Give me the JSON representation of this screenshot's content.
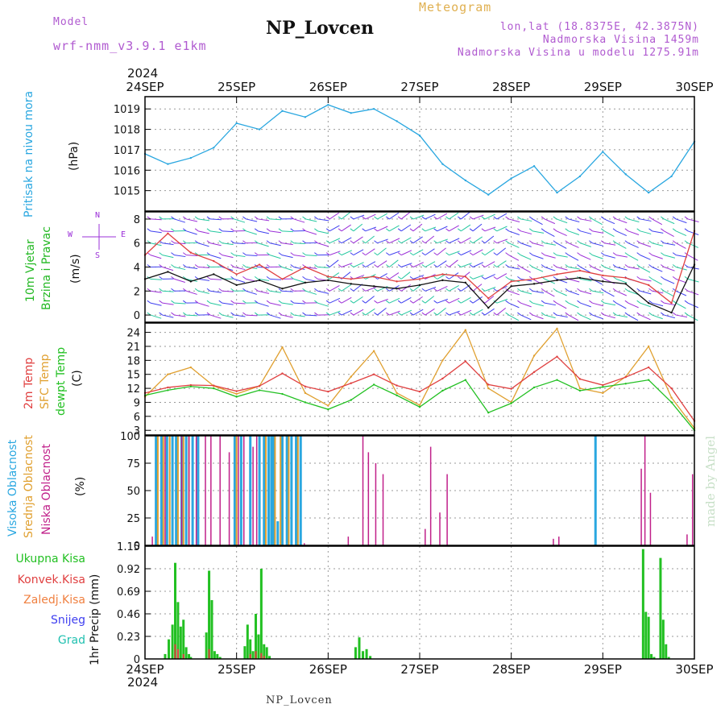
{
  "header": {
    "model_label": "Model",
    "model_name": "wrf-nmm_v3.9.1 e1km",
    "title": "NP_Lovcen",
    "meteogram_label": "Meteogram",
    "coords": "lon,lat (18.8375E, 42.3875N)",
    "elevation": "Nadmorska Visina 1459m",
    "elevation_model": "Nadmorska Visina u modelu 1275.91m",
    "year_top": "2024",
    "year_bottom": "2024",
    "footer": "NP_Lovcen",
    "credit": "made by Angel"
  },
  "colors": {
    "pressure": "#2aa7e0",
    "wind_label": "#22b822",
    "wind_arrows_a": "#25c8a0",
    "wind_arrows_b": "#3f3ff0",
    "wind_arrows_c": "#9b30d8",
    "gust": "#e04040",
    "temp2m": "#e04040",
    "sfc": "#e0a030",
    "dew": "#22c022",
    "high_cloud": "#2aa7e0",
    "mid_cloud": "#e0a030",
    "low_cloud": "#c0208a",
    "total_precip": "#22c022",
    "conv_precip": "#e04040",
    "frozen": "#f08040",
    "snow": "#3f3ff0",
    "hail": "#20c0b0"
  },
  "x_axis": {
    "labels": [
      "24SEP",
      "25SEP",
      "26SEP",
      "27SEP",
      "28SEP",
      "29SEP",
      "30SEP"
    ]
  },
  "panels": {
    "pressure": {
      "label": "Pritisak na nivou mora",
      "unit": "(hPa)",
      "ticks": [
        "1015",
        "1016",
        "1017",
        "1018",
        "1019"
      ]
    },
    "wind": {
      "label1": "10m Vjetar",
      "label2": "Brzina i Pravac",
      "unit": "(m/s)",
      "ticks": [
        "0",
        "2",
        "4",
        "6",
        "8"
      ],
      "compass_w": "W",
      "compass_e": "E",
      "compass_n": "N",
      "compass_s": "S"
    },
    "temp": {
      "label1": "2m Temp",
      "label2": "SFC Temp",
      "label3": "dewpt Temp",
      "unit": "(C)",
      "ticks": [
        "3",
        "6",
        "9",
        "12",
        "15",
        "18",
        "21",
        "24"
      ]
    },
    "cloud": {
      "label1": "Visoka Oblacnost",
      "label2": "Srednja Oblacnost",
      "label3": "Niska Oblacnost",
      "unit": "(%)",
      "ticks": [
        "0",
        "25",
        "50",
        "75",
        "100"
      ]
    },
    "precip": {
      "labels": [
        "Ukupna Kisa",
        "Konvek.Kisa",
        "Zaledj.Kisa",
        "Snijeg",
        "Grad"
      ],
      "unit": "1hr Precip (mm)",
      "ticks": [
        "0",
        "0.23",
        "0.46",
        "0.69",
        "0.92",
        "1.15"
      ]
    }
  },
  "chart_data": [
    {
      "type": "line",
      "name": "pressure",
      "x_unit": "days after 24SEP 00UTC",
      "ylim": [
        1014.0,
        1019.6
      ],
      "x": [
        0,
        0.25,
        0.5,
        0.75,
        1.0,
        1.25,
        1.5,
        1.75,
        2.0,
        2.25,
        2.5,
        2.75,
        3.0,
        3.25,
        3.5,
        3.75,
        4.0,
        4.25,
        4.5,
        4.75,
        5.0,
        5.25,
        5.5,
        5.75,
        6.0
      ],
      "y": [
        1016.8,
        1016.3,
        1016.6,
        1017.1,
        1018.3,
        1018.0,
        1018.9,
        1018.6,
        1019.2,
        1018.8,
        1019.0,
        1018.4,
        1017.7,
        1016.3,
        1015.5,
        1014.8,
        1015.6,
        1016.2,
        1014.9,
        1015.7,
        1016.9,
        1015.8,
        1014.9,
        1015.7,
        1017.4
      ]
    },
    {
      "type": "line",
      "name": "wind",
      "x_unit": "days after 24SEP 00UTC",
      "ylim": [
        -0.6,
        8.6
      ],
      "series": [
        {
          "name": "10m wind speed",
          "x": [
            0,
            0.25,
            0.5,
            0.75,
            1.0,
            1.25,
            1.5,
            1.75,
            2.0,
            2.25,
            2.5,
            2.75,
            3.0,
            3.25,
            3.5,
            3.75,
            4.0,
            4.25,
            4.5,
            4.75,
            5.0,
            5.25,
            5.5,
            5.75,
            6.0
          ],
          "y": [
            3.0,
            3.6,
            2.8,
            3.4,
            2.5,
            2.9,
            2.2,
            2.7,
            2.9,
            2.6,
            2.4,
            2.2,
            2.5,
            2.9,
            2.7,
            0.6,
            2.4,
            2.6,
            2.9,
            3.1,
            2.8,
            2.6,
            1.0,
            0.2,
            4.2
          ]
        },
        {
          "name": "gust",
          "x": [
            0,
            0.25,
            0.5,
            0.75,
            1.0,
            1.25,
            1.5,
            1.75,
            2.0,
            2.25,
            2.5,
            2.75,
            3.0,
            3.25,
            3.5,
            3.75,
            4.0,
            4.25,
            4.5,
            4.75,
            5.0,
            5.25,
            5.5,
            5.75,
            6.0
          ],
          "y": [
            5.0,
            6.8,
            5.2,
            4.5,
            3.4,
            4.2,
            3.0,
            4.0,
            3.2,
            3.0,
            3.2,
            2.8,
            3.0,
            3.4,
            3.2,
            1.4,
            2.8,
            3.0,
            3.4,
            3.7,
            3.3,
            3.1,
            2.5,
            1.0,
            7.0
          ]
        }
      ]
    },
    {
      "type": "line",
      "name": "temperature",
      "x_unit": "days after 24SEP 00UTC",
      "ylim": [
        2,
        26
      ],
      "series": [
        {
          "name": "2m Temp",
          "x": [
            0,
            0.25,
            0.5,
            0.75,
            1.0,
            1.25,
            1.5,
            1.75,
            2.0,
            2.25,
            2.5,
            2.75,
            3.0,
            3.25,
            3.5,
            3.75,
            4.0,
            4.25,
            4.5,
            4.75,
            5.0,
            5.25,
            5.5,
            5.75,
            6.0
          ],
          "y": [
            11.0,
            12.2,
            12.7,
            12.6,
            11.4,
            12.5,
            15.2,
            12.4,
            11.3,
            13.1,
            15.0,
            12.6,
            11.3,
            14.1,
            17.8,
            12.8,
            11.9,
            15.5,
            18.8,
            14.0,
            12.7,
            14.4,
            16.5,
            12.0,
            5.0
          ]
        },
        {
          "name": "SFC Temp",
          "x": [
            0,
            0.25,
            0.5,
            0.75,
            1.0,
            1.25,
            1.5,
            1.75,
            2.0,
            2.25,
            2.5,
            2.75,
            3.0,
            3.25,
            3.5,
            3.75,
            4.0,
            4.25,
            4.5,
            4.75,
            5.0,
            5.25,
            5.5,
            5.75,
            6.0
          ],
          "y": [
            10.2,
            15.0,
            16.5,
            12.5,
            10.8,
            12.5,
            20.8,
            11.0,
            8.3,
            14.5,
            20.0,
            11.0,
            8.4,
            18.0,
            24.5,
            12.0,
            9.0,
            19.0,
            24.8,
            12.0,
            11.0,
            14.5,
            21.0,
            10.0,
            3.5
          ]
        },
        {
          "name": "dewpt Temp",
          "x": [
            0,
            0.25,
            0.5,
            0.75,
            1.0,
            1.25,
            1.5,
            1.75,
            2.0,
            2.25,
            2.5,
            2.75,
            3.0,
            3.25,
            3.5,
            3.75,
            4.0,
            4.25,
            4.5,
            4.75,
            5.0,
            5.25,
            5.5,
            5.75,
            6.0
          ],
          "y": [
            10.5,
            11.6,
            12.4,
            12.0,
            10.2,
            11.6,
            10.8,
            9.0,
            7.5,
            9.5,
            12.8,
            10.5,
            8.0,
            11.5,
            13.8,
            6.8,
            8.8,
            12.2,
            13.8,
            11.5,
            12.3,
            13.0,
            13.8,
            9.0,
            3.0
          ]
        }
      ]
    },
    {
      "type": "bar",
      "name": "cloud cover",
      "x_unit": "days after 24SEP 00UTC",
      "ylim": [
        0,
        100
      ],
      "series": [
        {
          "name": "Visoka Oblacnost",
          "x": [
            0.12,
            0.18,
            0.24,
            0.3,
            0.34,
            0.4,
            0.45,
            0.52,
            0.58,
            0.98,
            1.05,
            1.15,
            1.25,
            1.3,
            1.35,
            1.38,
            1.4,
            1.45,
            1.5,
            1.55,
            1.6,
            1.65,
            1.7,
            4.92
          ],
          "y": [
            100,
            100,
            100,
            100,
            100,
            100,
            100,
            100,
            100,
            100,
            100,
            100,
            100,
            100,
            100,
            100,
            100,
            22,
            100,
            100,
            100,
            100,
            100,
            100
          ]
        },
        {
          "name": "Srednja Oblacnost",
          "x": [
            0.14,
            0.2,
            0.27,
            0.36,
            0.42,
            0.48,
            1.0,
            1.32,
            1.42,
            1.48,
            1.57,
            1.67
          ],
          "y": [
            100,
            100,
            100,
            100,
            100,
            100,
            100,
            100,
            100,
            100,
            100,
            100
          ]
        },
        {
          "name": "Niska Oblacnost",
          "x": [
            0.08,
            0.22,
            0.4,
            0.48,
            0.56,
            0.66,
            0.72,
            0.82,
            0.92,
            1.02,
            1.08,
            1.18,
            1.22,
            1.74,
            2.22,
            2.38,
            2.44,
            2.52,
            2.6,
            3.06,
            3.12,
            3.22,
            3.3,
            4.46,
            4.52,
            5.42,
            5.46,
            5.52,
            5.92,
            5.98
          ],
          "y": [
            8,
            100,
            100,
            100,
            100,
            100,
            100,
            100,
            85,
            100,
            100,
            90,
            100,
            2,
            8,
            100,
            85,
            75,
            65,
            15,
            90,
            30,
            65,
            6,
            8,
            70,
            100,
            48,
            10,
            65
          ]
        }
      ]
    },
    {
      "type": "bar",
      "name": "1hr precipitation",
      "x_unit": "days after 24SEP 00UTC",
      "ylim": [
        0,
        1.15
      ],
      "series": [
        {
          "name": "Ukupna Kisa",
          "x": [
            0.22,
            0.26,
            0.3,
            0.33,
            0.36,
            0.39,
            0.42,
            0.45,
            0.48,
            0.5,
            0.67,
            0.7,
            0.73,
            0.76,
            0.79,
            0.82,
            1.09,
            1.12,
            1.15,
            1.18,
            1.21,
            1.24,
            1.27,
            1.3,
            1.33,
            1.36,
            2.3,
            2.34,
            2.38,
            2.42,
            2.46,
            5.44,
            5.47,
            5.5,
            5.53,
            5.56,
            5.63,
            5.66,
            5.69,
            5.72
          ],
          "y": [
            0.05,
            0.2,
            0.35,
            0.98,
            0.58,
            0.33,
            0.4,
            0.12,
            0.05,
            0.02,
            0.27,
            0.9,
            0.6,
            0.08,
            0.05,
            0.02,
            0.13,
            0.35,
            0.2,
            0.08,
            0.46,
            0.25,
            0.92,
            0.15,
            0.12,
            0.03,
            0.12,
            0.22,
            0.08,
            0.1,
            0.03,
            1.12,
            0.48,
            0.43,
            0.05,
            0.02,
            1.03,
            0.4,
            0.15,
            0.02
          ]
        },
        {
          "name": "Konvek.Kisa",
          "x": [
            0.33,
            0.36,
            0.42,
            0.7,
            1.15,
            1.21,
            1.27,
            1.3
          ],
          "y": [
            0.15,
            0.1,
            0.05,
            0.1,
            0.05,
            0.08,
            0.06,
            0.03
          ]
        }
      ]
    }
  ]
}
